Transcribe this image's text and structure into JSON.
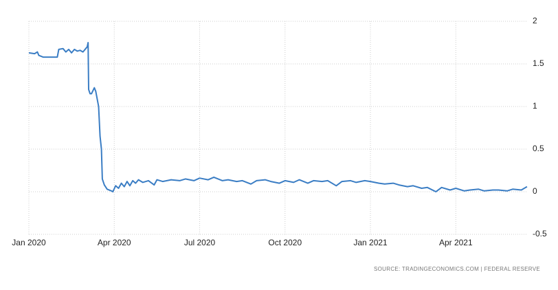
{
  "chart_data": {
    "type": "line",
    "source": "SOURCE: TRADINGECONOMICS.COM | FEDERAL RESERVE",
    "x": [
      0,
      0.2,
      0.3,
      0.35,
      0.5,
      0.8,
      1.0,
      1.05,
      1.2,
      1.3,
      1.4,
      1.5,
      1.6,
      1.7,
      1.8,
      1.9,
      2.0,
      2.05,
      2.08,
      2.1,
      2.15,
      2.2,
      2.3,
      2.35,
      2.45,
      2.5,
      2.55,
      2.58,
      2.65,
      2.75,
      2.9,
      2.95,
      3.05,
      3.15,
      3.25,
      3.35,
      3.45,
      3.55,
      3.65,
      3.75,
      3.85,
      4.0,
      4.2,
      4.4,
      4.5,
      4.7,
      5.0,
      5.3,
      5.5,
      5.8,
      6.0,
      6.3,
      6.5,
      6.8,
      7.0,
      7.3,
      7.5,
      7.8,
      8.0,
      8.3,
      8.5,
      8.8,
      9.0,
      9.3,
      9.5,
      9.8,
      10.0,
      10.3,
      10.5,
      10.8,
      11.0,
      11.3,
      11.5,
      11.8,
      12.0,
      12.3,
      12.5,
      12.8,
      13.0,
      13.3,
      13.5,
      13.8,
      14.0,
      14.3,
      14.5,
      14.8,
      15.0,
      15.3,
      15.5,
      15.8,
      16.0,
      16.3,
      16.5,
      16.8,
      17.0,
      17.3,
      17.5
    ],
    "series": [
      {
        "color": "#3a7dc4",
        "values": [
          1.63,
          1.62,
          1.64,
          1.6,
          1.58,
          1.58,
          1.58,
          1.67,
          1.68,
          1.64,
          1.67,
          1.63,
          1.67,
          1.65,
          1.66,
          1.64,
          1.68,
          1.7,
          1.75,
          1.2,
          1.15,
          1.15,
          1.22,
          1.18,
          1.0,
          0.65,
          0.5,
          0.15,
          0.08,
          0.03,
          0.01,
          0.0,
          0.07,
          0.04,
          0.1,
          0.06,
          0.12,
          0.07,
          0.13,
          0.1,
          0.14,
          0.11,
          0.13,
          0.08,
          0.14,
          0.12,
          0.14,
          0.13,
          0.15,
          0.13,
          0.16,
          0.14,
          0.17,
          0.13,
          0.14,
          0.12,
          0.13,
          0.09,
          0.13,
          0.14,
          0.12,
          0.1,
          0.13,
          0.11,
          0.14,
          0.1,
          0.13,
          0.12,
          0.13,
          0.07,
          0.12,
          0.13,
          0.11,
          0.13,
          0.12,
          0.1,
          0.09,
          0.1,
          0.08,
          0.06,
          0.07,
          0.04,
          0.05,
          0.0,
          0.05,
          0.02,
          0.04,
          0.01,
          0.02,
          0.03,
          0.01,
          0.02,
          0.02,
          0.01,
          0.03,
          0.02,
          0.06
        ]
      }
    ],
    "xlim": [
      0,
      17.6
    ],
    "xticks": [
      {
        "value": 0,
        "label": "Jan 2020"
      },
      {
        "value": 3,
        "label": "Apr 2020"
      },
      {
        "value": 6,
        "label": "Jul 2020"
      },
      {
        "value": 9,
        "label": "Oct 2020"
      },
      {
        "value": 12,
        "label": "Jan 2021"
      },
      {
        "value": 15,
        "label": "Apr 2021"
      }
    ],
    "ylim": [
      -0.5,
      2
    ],
    "yticks": [
      2,
      1.5,
      1,
      0.5,
      0,
      -0.5
    ],
    "grid": true
  }
}
